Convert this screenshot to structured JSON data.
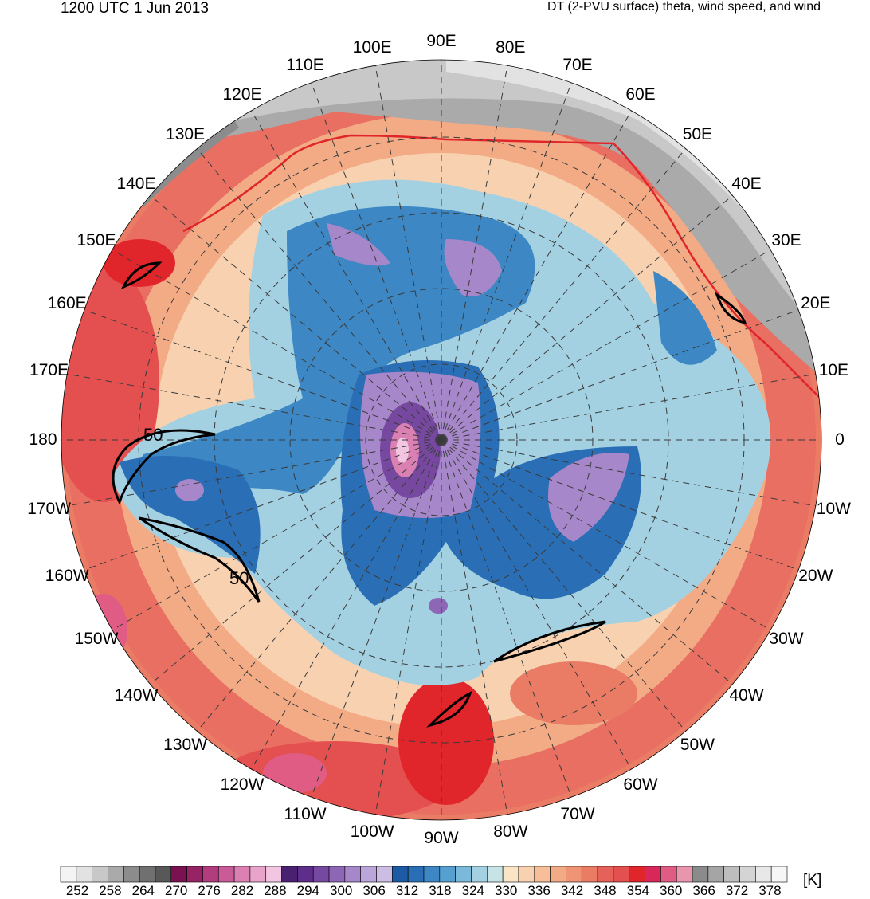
{
  "header": {
    "time": "1200 UTC 1 Jun 2013",
    "description": "DT (2-PVU surface) theta, wind speed, and wind"
  },
  "map": {
    "projection": "north-polar-stereographic",
    "longitude_labels": [
      "90E",
      "80E",
      "70E",
      "60E",
      "50E",
      "40E",
      "30E",
      "20E",
      "10E",
      "0",
      "10W",
      "20W",
      "30W",
      "40W",
      "50W",
      "60W",
      "70W",
      "80W",
      "90W",
      "100W",
      "110W",
      "120W",
      "130W",
      "140W",
      "150W",
      "160W",
      "170W",
      "180",
      "170E",
      "160E",
      "150E",
      "140E",
      "130E",
      "120E",
      "110E",
      "100E"
    ],
    "contour_labels": [
      "50",
      "50"
    ]
  },
  "colorbar": {
    "units": "[K]",
    "tick_labels": [
      "252",
      "258",
      "264",
      "270",
      "276",
      "282",
      "288",
      "294",
      "300",
      "306",
      "312",
      "318",
      "324",
      "330",
      "336",
      "342",
      "348",
      "354",
      "360",
      "366",
      "372",
      "378"
    ],
    "colors": [
      "#f4f4f4",
      "#e2e2e2",
      "#c8c8c8",
      "#aaaaaa",
      "#8c8c8c",
      "#707070",
      "#585858",
      "#7a1150",
      "#962465",
      "#b23c7e",
      "#c95c98",
      "#db80b2",
      "#e9a4cb",
      "#f2c6e1",
      "#4a2170",
      "#5e2e8a",
      "#7648a0",
      "#8d66b6",
      "#a687c9",
      "#bba6d9",
      "#ccbde4",
      "#1d5aa4",
      "#2a6fb6",
      "#3c87c4",
      "#56a0cf",
      "#7ab9d9",
      "#a4d1e2",
      "#c8e3e6",
      "#fae4c6",
      "#f8d2b0",
      "#f6bf9a",
      "#f3ab86",
      "#ef9474",
      "#ea7c66",
      "#e5625b",
      "#e44f4f",
      "#e1262b",
      "#d8285a",
      "#e05c84",
      "#e895ae",
      "#8b8b8b",
      "#a5a5a5",
      "#bebebe",
      "#d4d4d4",
      "#e8e8e8",
      "#f6f6f6"
    ]
  }
}
